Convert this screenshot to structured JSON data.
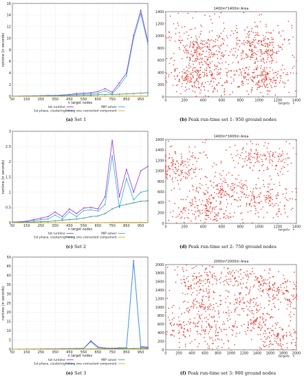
{
  "captions": [
    {
      "tag": "(a)",
      "text": "Set 1"
    },
    {
      "tag": "(b)",
      "text": "Peak run-time set 1: 950 ground nodes"
    },
    {
      "tag": "(c)",
      "text": "Set 2"
    },
    {
      "tag": "(d)",
      "text": "Peak run-time set 2: 750 ground nodes"
    },
    {
      "tag": "(e)",
      "text": "Set 3"
    },
    {
      "tag": "(f)",
      "text": "Peak run-time set 3: 900 ground nodes"
    }
  ],
  "colors": {
    "tot": "#9a2fd8",
    "mip": "#2aa8e0",
    "phase1": "#2c8f7a",
    "link": "#e0a400",
    "targets": "#e8261b"
  },
  "chart_data": [
    {
      "type": "line",
      "xlabel": "n target nodes",
      "ylabel": "runtime (in seconds)",
      "x": [
        50,
        100,
        150,
        200,
        250,
        300,
        350,
        400,
        450,
        500,
        550,
        600,
        650,
        700,
        750,
        800,
        850,
        900,
        950,
        1000
      ],
      "xticks": [
        50,
        150,
        250,
        350,
        450,
        550,
        650,
        750,
        850,
        950
      ],
      "ylim": [
        0,
        16
      ],
      "yticks": [
        0,
        2,
        4,
        6,
        8,
        10,
        12,
        14,
        16
      ],
      "series": [
        {
          "name": "tot runtime",
          "values": [
            0.02,
            0.03,
            0.05,
            0.08,
            0.1,
            0.14,
            0.15,
            0.2,
            0.3,
            0.45,
            0.55,
            0.6,
            0.8,
            1.3,
            0.7,
            2.3,
            4.0,
            10.5,
            14.8,
            9.5
          ]
        },
        {
          "name": "MIP solver",
          "values": [
            0.01,
            0.02,
            0.04,
            0.06,
            0.08,
            0.1,
            0.12,
            0.15,
            0.2,
            0.3,
            0.35,
            0.4,
            0.5,
            0.9,
            0.4,
            1.8,
            3.5,
            10.0,
            14.2,
            9.0
          ]
        },
        {
          "name": "1st phase, clustering",
          "values": [
            0.005,
            0.01,
            0.01,
            0.015,
            0.02,
            0.03,
            0.04,
            0.05,
            0.06,
            0.1,
            0.15,
            0.2,
            0.25,
            0.3,
            0.3,
            0.35,
            0.4,
            0.45,
            0.55,
            0.6
          ]
        },
        {
          "name": "linking one connected component",
          "values": [
            0,
            0,
            0,
            0,
            0,
            0,
            0,
            0,
            0,
            0.01,
            0.01,
            0.01,
            0.01,
            0.01,
            0.01,
            0.02,
            0.02,
            0.02,
            0.02,
            0.02
          ]
        }
      ]
    },
    {
      "type": "scatter",
      "title": "1400m*1400m Area",
      "legend": "targets",
      "xlim": [
        0,
        1400
      ],
      "ylim": [
        0,
        1400
      ],
      "xticks": [
        0,
        200,
        400,
        600,
        800,
        1000,
        1200,
        1400
      ],
      "yticks": [
        0,
        200,
        400,
        600,
        800,
        1000,
        1200,
        1400
      ],
      "points": 950,
      "clusters": [
        [
          350,
          350,
          150,
          130
        ],
        [
          1020,
          330,
          150,
          130
        ],
        [
          1000,
          820,
          140,
          130
        ],
        [
          400,
          800,
          150,
          140
        ]
      ]
    },
    {
      "type": "line",
      "xlabel": "n target nodes",
      "ylabel": "runtime (in seconds)",
      "x": [
        50,
        100,
        150,
        200,
        250,
        300,
        350,
        400,
        450,
        500,
        550,
        600,
        650,
        700,
        750,
        800,
        850,
        900,
        950,
        1000
      ],
      "xticks": [
        50,
        150,
        250,
        350,
        450,
        550,
        650,
        750,
        850,
        950
      ],
      "ylim": [
        0,
        3
      ],
      "yticks": [
        0,
        0.5,
        1,
        1.5,
        2,
        2.5,
        3
      ],
      "series": [
        {
          "name": "tot runtime",
          "values": [
            0.02,
            0.03,
            0.05,
            0.1,
            0.15,
            0.2,
            0.35,
            0.2,
            0.45,
            0.3,
            0.48,
            0.5,
            0.45,
            0.85,
            2.7,
            0.85,
            1.75,
            1.0,
            1.7,
            1.85
          ]
        },
        {
          "name": "MIP solver",
          "values": [
            0.01,
            0.02,
            0.03,
            0.06,
            0.1,
            0.12,
            0.25,
            0.12,
            0.35,
            0.2,
            0.4,
            0.42,
            0.38,
            0.6,
            2.2,
            0.5,
            1.45,
            0.75,
            1.0,
            1.05
          ]
        },
        {
          "name": "1st phase, clustering",
          "values": [
            0.005,
            0.01,
            0.01,
            0.02,
            0.03,
            0.04,
            0.06,
            0.08,
            0.1,
            0.12,
            0.15,
            0.2,
            0.22,
            0.3,
            0.45,
            0.55,
            0.6,
            0.65,
            0.7,
            0.72
          ]
        },
        {
          "name": "linking one connected component",
          "values": [
            0,
            0,
            0,
            0,
            0,
            0,
            0,
            0,
            0,
            0,
            0,
            0,
            0,
            0,
            0.01,
            0.01,
            0.01,
            0.01,
            0.01,
            0.01
          ]
        }
      ]
    },
    {
      "type": "scatter",
      "title": "1400m*1600m Area",
      "legend": "targets",
      "xlim": [
        0,
        1400
      ],
      "ylim": [
        0,
        1600
      ],
      "xticks": [
        0,
        200,
        400,
        600,
        800,
        1000,
        1200,
        1400
      ],
      "yticks": [
        0,
        200,
        400,
        600,
        800,
        1000,
        1200,
        1400,
        1600
      ],
      "points": 750,
      "clusters": [
        [
          150,
          1050,
          130,
          150
        ],
        [
          1030,
          1250,
          160,
          130
        ],
        [
          600,
          650,
          140,
          130
        ],
        [
          1030,
          480,
          150,
          130
        ],
        [
          400,
          250,
          140,
          130
        ]
      ]
    },
    {
      "type": "line",
      "xlabel": "n target nodes",
      "ylabel": "runtime (in seconds)",
      "x": [
        50,
        100,
        150,
        200,
        250,
        300,
        350,
        400,
        450,
        500,
        550,
        600,
        650,
        700,
        750,
        800,
        850,
        900,
        950,
        1000
      ],
      "xticks": [
        50,
        150,
        250,
        350,
        450,
        550,
        650,
        750,
        850,
        950
      ],
      "ylim": [
        0,
        50
      ],
      "yticks": [
        0,
        5,
        10,
        15,
        20,
        25,
        30,
        35,
        40,
        45,
        50
      ],
      "series": [
        {
          "name": "tot runtime",
          "values": [
            0.05,
            0.05,
            0.1,
            0.1,
            0.15,
            0.2,
            0.2,
            0.25,
            0.3,
            0.35,
            0.45,
            4.5,
            1.2,
            0.6,
            0.5,
            0.7,
            0.8,
            48.0,
            1.5,
            1.0
          ]
        },
        {
          "name": "MIP solver",
          "values": [
            0.03,
            0.03,
            0.05,
            0.06,
            0.08,
            0.1,
            0.12,
            0.15,
            0.2,
            0.25,
            0.3,
            4.0,
            0.9,
            0.4,
            0.3,
            0.5,
            0.6,
            47.0,
            1.0,
            0.7
          ]
        },
        {
          "name": "1st phase, clustering",
          "values": [
            0.01,
            0.01,
            0.02,
            0.02,
            0.03,
            0.04,
            0.05,
            0.06,
            0.08,
            0.1,
            0.12,
            0.15,
            0.18,
            0.2,
            0.22,
            0.25,
            0.3,
            0.35,
            0.4,
            0.45
          ]
        },
        {
          "name": "linking one connected component",
          "values": [
            0,
            0,
            0,
            0,
            0,
            0,
            0,
            0,
            0,
            0,
            0,
            0,
            0,
            0,
            0,
            0,
            0,
            0,
            0,
            0
          ]
        }
      ]
    },
    {
      "type": "scatter",
      "title": "2000m*2000m Area",
      "legend": "targets",
      "xlim": [
        0,
        2000
      ],
      "ylim": [
        0,
        2000
      ],
      "xticks": [
        0,
        200,
        400,
        600,
        800,
        1000,
        1200,
        1400,
        1600,
        1800,
        2000
      ],
      "yticks": [
        0,
        200,
        400,
        600,
        800,
        1000,
        1200,
        1400,
        1600,
        1800,
        2000
      ],
      "points": 900,
      "clusters": [
        [
          450,
          1600,
          160,
          150
        ],
        [
          1000,
          1650,
          160,
          140
        ],
        [
          1500,
          1600,
          150,
          150
        ],
        [
          1800,
          1300,
          130,
          150
        ],
        [
          600,
          1050,
          160,
          150
        ],
        [
          1200,
          1050,
          150,
          150
        ],
        [
          300,
          500,
          160,
          150
        ],
        [
          800,
          450,
          160,
          150
        ],
        [
          1450,
          600,
          150,
          150
        ],
        [
          1700,
          250,
          140,
          140
        ]
      ]
    }
  ]
}
